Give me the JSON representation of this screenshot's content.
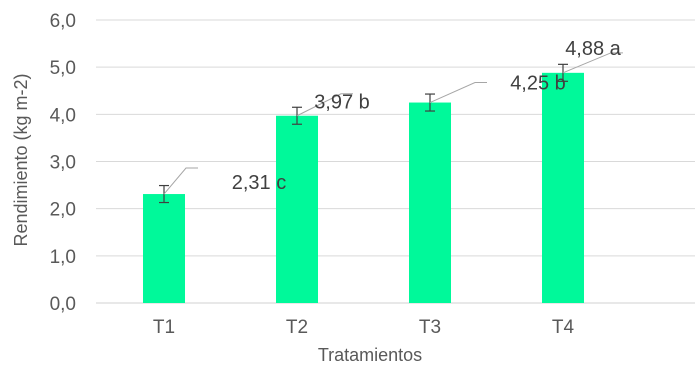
{
  "chart_data": {
    "type": "bar",
    "categories": [
      "T1",
      "T2",
      "T3",
      "T4"
    ],
    "values": [
      2.31,
      3.97,
      4.25,
      4.88
    ],
    "error": [
      0.18,
      0.18,
      0.18,
      0.18
    ],
    "data_labels": [
      "2,31 c",
      "3,97 b",
      "4,25 b",
      "4,88 a"
    ],
    "y_ticks": [
      "0,0",
      "1,0",
      "2,0",
      "3,0",
      "4,0",
      "5,0",
      "6,0"
    ],
    "xlabel": "Tratamientos",
    "ylabel": "Rendimiento (kg m-2)",
    "ylim": [
      0,
      6
    ],
    "grid": true,
    "bar_color": "#00f99a"
  }
}
